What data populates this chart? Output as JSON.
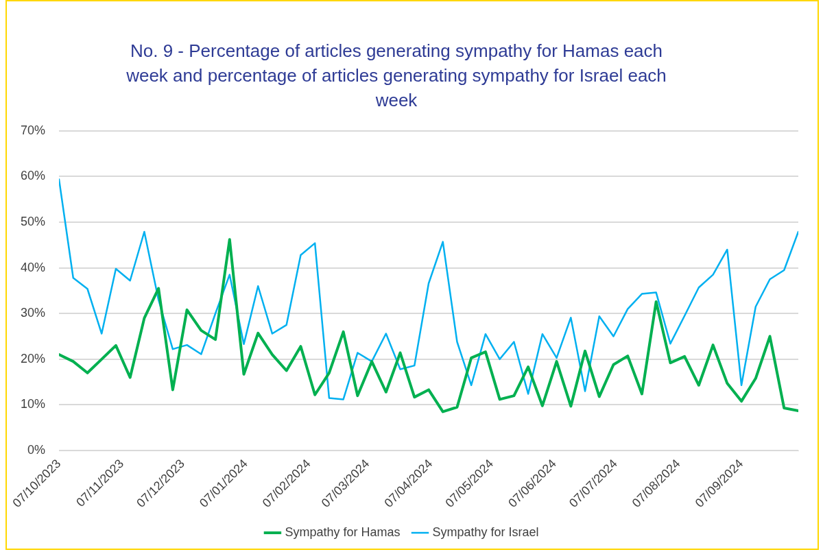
{
  "chart_data": {
    "type": "line",
    "title": "No. 9 - Percentage of articles generating sympathy for Hamas each week and percentage of articles generating sympathy for Israel each week",
    "x": [
      "2023-10-07",
      "2023-10-14",
      "2023-10-21",
      "2023-10-28",
      "2023-11-04",
      "2023-11-11",
      "2023-11-18",
      "2023-11-25",
      "2023-12-02",
      "2023-12-09",
      "2023-12-16",
      "2023-12-23",
      "2023-12-30",
      "2024-01-06",
      "2024-01-13",
      "2024-01-20",
      "2024-01-27",
      "2024-02-03",
      "2024-02-10",
      "2024-02-17",
      "2024-02-24",
      "2024-03-02",
      "2024-03-09",
      "2024-03-16",
      "2024-03-23",
      "2024-03-30",
      "2024-04-06",
      "2024-04-13",
      "2024-04-20",
      "2024-04-27",
      "2024-05-04",
      "2024-05-11",
      "2024-05-18",
      "2024-05-25",
      "2024-06-01",
      "2024-06-08",
      "2024-06-15",
      "2024-06-22",
      "2024-06-29",
      "2024-07-06",
      "2024-07-13",
      "2024-07-20",
      "2024-07-27",
      "2024-08-03",
      "2024-08-10",
      "2024-08-17",
      "2024-08-24",
      "2024-08-31",
      "2024-09-07",
      "2024-09-14",
      "2024-09-21",
      "2024-09-28",
      "2024-10-05"
    ],
    "series": [
      {
        "name": "Sympathy for Hamas",
        "color": "#00b050",
        "values": [
          21,
          19.5,
          17,
          20,
          23,
          16,
          29,
          35.5,
          13.3,
          30.8,
          26.3,
          24.3,
          46.2,
          16.7,
          25.7,
          21,
          17.5,
          22.8,
          12.2,
          17,
          26,
          12,
          19.5,
          12.8,
          21.4,
          11.7,
          13.3,
          8.5,
          9.5,
          20.3,
          21.6,
          11.2,
          12,
          18.3,
          9.8,
          19.5,
          9.7,
          21.8,
          11.8,
          18.8,
          20.7,
          12.4,
          32.6,
          19.2,
          20.6,
          14.3,
          23.1,
          14.7,
          10.8,
          15.8,
          25,
          9.3,
          8.7
        ]
      },
      {
        "name": "Sympathy for Israel",
        "color": "#00b0f0",
        "values": [
          59.4,
          37.8,
          35.4,
          25.6,
          39.8,
          37.2,
          47.9,
          33,
          22.2,
          23.1,
          21.1,
          30,
          38.5,
          23.3,
          36,
          25.6,
          27.5,
          42.8,
          45.4,
          11.5,
          11.2,
          21.4,
          19.5,
          25.6,
          17.8,
          18.6,
          36.6,
          45.7,
          23.8,
          14.3,
          25.5,
          20,
          23.8,
          12.4,
          25.5,
          20.3,
          29.1,
          13,
          29.4,
          25,
          31,
          34.3,
          34.6,
          23.4,
          29.5,
          35.7,
          38.5,
          44,
          14.3,
          31.5,
          37.5,
          39.5,
          47.9
        ]
      }
    ],
    "xlim": [
      "2023-10-07",
      "2024-10-05"
    ],
    "xticks": [
      {
        "value": "2023-10-07",
        "label": "07/10/2023"
      },
      {
        "value": "2023-11-07",
        "label": "07/11/2023"
      },
      {
        "value": "2023-12-07",
        "label": "07/12/2023"
      },
      {
        "value": "2024-01-07",
        "label": "07/01/2024"
      },
      {
        "value": "2024-02-07",
        "label": "07/02/2024"
      },
      {
        "value": "2024-03-07",
        "label": "07/03/2024"
      },
      {
        "value": "2024-04-07",
        "label": "07/04/2024"
      },
      {
        "value": "2024-05-07",
        "label": "07/05/2024"
      },
      {
        "value": "2024-06-07",
        "label": "07/06/2024"
      },
      {
        "value": "2024-07-07",
        "label": "07/07/2024"
      },
      {
        "value": "2024-08-07",
        "label": "07/08/2024"
      },
      {
        "value": "2024-09-07",
        "label": "07/09/2024"
      }
    ],
    "ylim": [
      0,
      70
    ],
    "yticks": [
      {
        "value": 0,
        "label": "0%"
      },
      {
        "value": 10,
        "label": "10%"
      },
      {
        "value": 20,
        "label": "20%"
      },
      {
        "value": 30,
        "label": "30%"
      },
      {
        "value": 40,
        "label": "40%"
      },
      {
        "value": 50,
        "label": "50%"
      },
      {
        "value": 60,
        "label": "60%"
      },
      {
        "value": 70,
        "label": "70%"
      }
    ],
    "grid": "y",
    "legend": "bottom",
    "marker": "none",
    "line_style": "solid"
  }
}
